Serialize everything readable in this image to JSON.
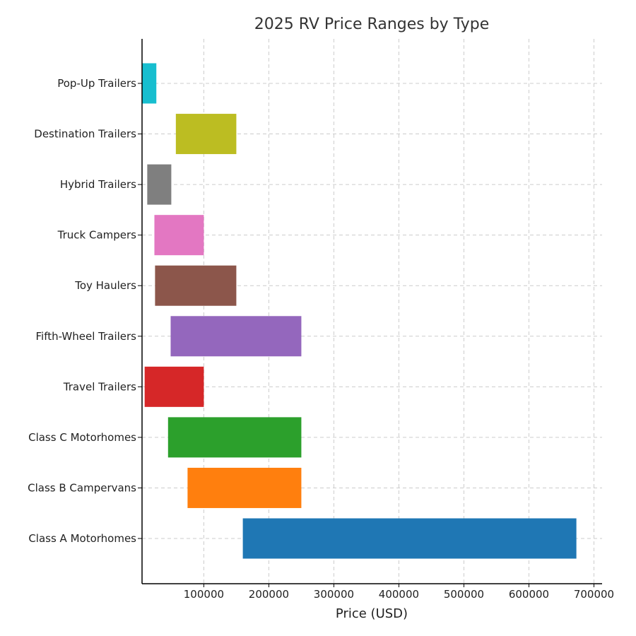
{
  "chart_data": {
    "type": "bar",
    "orientation": "horizontal",
    "title": "2025 RV Price Ranges by Type",
    "xlabel": "Price (USD)",
    "ylabel": "",
    "xlim": [
      5000,
      706000
    ],
    "xticks": [
      100000,
      200000,
      300000,
      400000,
      500000,
      600000,
      700000
    ],
    "xtick_labels": [
      "100000",
      "200000",
      "300000",
      "400000",
      "500000",
      "600000",
      "700000"
    ],
    "grid": true,
    "categories": [
      "Class A Motorhomes",
      "Class B Campervans",
      "Class C Motorhomes",
      "Travel Trailers",
      "Fifth-Wheel Trailers",
      "Toy Haulers",
      "Truck Campers",
      "Hybrid Trailers",
      "Destination Trailers",
      "Pop-Up Trailers"
    ],
    "ranges": [
      {
        "min": 160000,
        "max": 673000,
        "color": "#1f77b4"
      },
      {
        "min": 75000,
        "max": 250000,
        "color": "#ff7f0e"
      },
      {
        "min": 45000,
        "max": 250000,
        "color": "#2ca02c"
      },
      {
        "min": 9000,
        "max": 100000,
        "color": "#d62728"
      },
      {
        "min": 49000,
        "max": 250000,
        "color": "#9467bd"
      },
      {
        "min": 25000,
        "max": 150000,
        "color": "#8c564b"
      },
      {
        "min": 24000,
        "max": 100000,
        "color": "#e377c2"
      },
      {
        "min": 13000,
        "max": 50000,
        "color": "#7f7f7f"
      },
      {
        "min": 57000,
        "max": 150000,
        "color": "#bcbd22"
      },
      {
        "min": 5000,
        "max": 27000,
        "color": "#17becf"
      }
    ]
  }
}
